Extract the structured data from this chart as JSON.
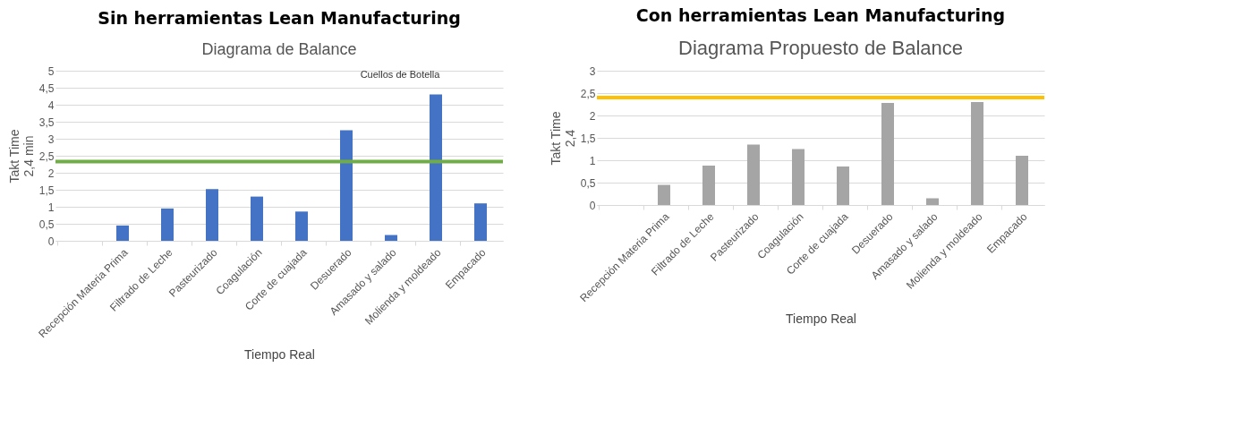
{
  "chart_data": [
    {
      "type": "bar",
      "title": "Sin herramientas Lean Manufacturing",
      "subtitle": "Diagrama de Balance",
      "xlabel": "Tiempo Real",
      "ylabel": "Takt Time\n2,4 min",
      "categories": [
        null,
        "Recepción Materia Prima",
        "Filtrado de Leche",
        "Pasteurizado",
        "Coagulación",
        "Corte de cuajada",
        "Desuerado",
        "Amasado y salado",
        "Molienda y moldeado",
        "Empacado"
      ],
      "values": [
        null,
        0.45,
        0.95,
        1.52,
        1.3,
        0.86,
        3.25,
        0.17,
        4.3,
        1.1
      ],
      "color": "#4472c4",
      "ylim": [
        0,
        5
      ],
      "yticks": [
        0,
        {
          "value": 0.5,
          "label": "0,5"
        },
        1,
        {
          "value": 1.5,
          "label": "1,5"
        },
        2,
        {
          "value": 2.5,
          "label": "2,5"
        },
        3,
        {
          "value": 3.5,
          "label": "3,5"
        },
        4,
        {
          "value": 4.5,
          "label": "4,5"
        },
        5
      ],
      "grid": "y",
      "ref_lines": [
        {
          "axis": "y",
          "value": 2.33,
          "color": "#70ad47"
        }
      ],
      "annotations": [
        {
          "text": "Cuellos de Botella",
          "x": "Molienda y moldeado",
          "y": 4.3
        }
      ]
    },
    {
      "type": "bar",
      "title": "Con herramientas Lean Manufacturing",
      "subtitle": "Diagrama Propuesto de Balance",
      "xlabel": "Tiempo Real",
      "ylabel": "Takt Time\n2,4",
      "categories": [
        null,
        "Recepción Materia Prima",
        "Filtrado de Leche",
        "Pasteurizado",
        "Coagulación",
        "Corte de cuajada",
        "Desuerado",
        "Amasado y salado",
        "Molienda y moldeado",
        "Empacado"
      ],
      "values": [
        null,
        0.45,
        0.88,
        1.35,
        1.25,
        0.86,
        2.28,
        0.15,
        2.3,
        1.1
      ],
      "color": "#a5a5a5",
      "ylim": [
        0,
        3
      ],
      "yticks": [
        0,
        {
          "value": 0.5,
          "label": "0,5"
        },
        1,
        {
          "value": 1.5,
          "label": "1,5"
        },
        2,
        {
          "value": 2.5,
          "label": "2,5"
        },
        3
      ],
      "grid": "y",
      "ref_lines": [
        {
          "axis": "y",
          "value": 2.4,
          "color": "#ffc000"
        }
      ]
    }
  ]
}
